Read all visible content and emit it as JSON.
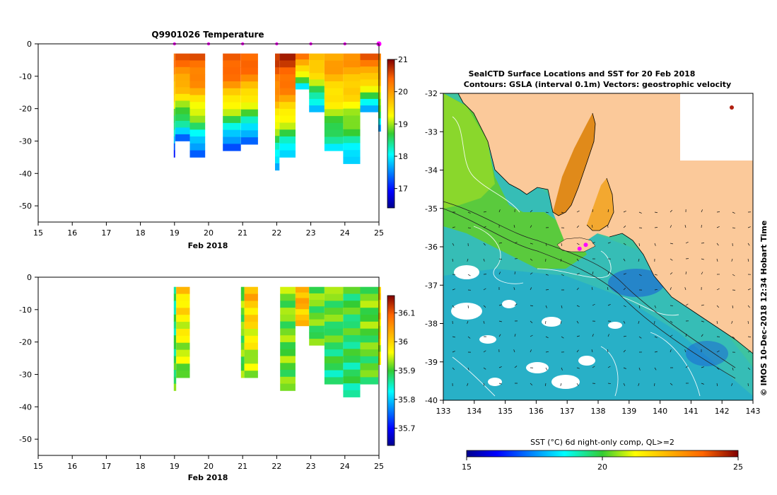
{
  "chart_data": [
    {
      "id": "temperature-section",
      "type": "heatmap",
      "title": "Q9901026  Temperature",
      "xlabel": "Feb 2018",
      "ylabel": "",
      "x_ticks": [
        "15",
        "16",
        "17",
        "18",
        "19",
        "20",
        "21",
        "22",
        "23",
        "24",
        "25"
      ],
      "y_ticks": [
        "0",
        "-10",
        "-20",
        "-30",
        "-40",
        "-50"
      ],
      "xlim": [
        15,
        25
      ],
      "ylim": [
        -55,
        0
      ],
      "colorbar": {
        "min": 16.4,
        "max": 21,
        "ticks": [
          "17",
          "18",
          "19",
          "20",
          "21"
        ]
      },
      "markers_x": [
        19,
        20,
        21,
        22,
        23,
        24,
        25
      ],
      "profiles": [
        {
          "x0": 18.98,
          "x1": 19.02,
          "depth": 35,
          "surface": 20.3,
          "bottom": 16.9
        },
        {
          "x0": 19.02,
          "x1": 19.45,
          "depth": 30,
          "surface": 20.4,
          "bottom": 17.3
        },
        {
          "x0": 19.45,
          "x1": 19.9,
          "depth": 35,
          "surface": 20.5,
          "bottom": 17.0
        },
        {
          "x0": 20.42,
          "x1": 20.95,
          "depth": 33,
          "surface": 20.6,
          "bottom": 16.9
        },
        {
          "x0": 20.95,
          "x1": 21.45,
          "depth": 31,
          "surface": 20.5,
          "bottom": 17.0
        },
        {
          "x0": 21.95,
          "x1": 22.08,
          "depth": 39,
          "surface": 20.6,
          "bottom": 17.4
        },
        {
          "x0": 22.08,
          "x1": 22.55,
          "depth": 35,
          "surface": 20.7,
          "bottom": 17.6
        },
        {
          "x0": 22.55,
          "x1": 22.95,
          "depth": 14,
          "surface": 20.3,
          "bottom": 17.6
        },
        {
          "x0": 22.95,
          "x1": 23.4,
          "depth": 21,
          "surface": 19.9,
          "bottom": 17.4
        },
        {
          "x0": 23.4,
          "x1": 23.95,
          "depth": 33,
          "surface": 20.0,
          "bottom": 17.9
        },
        {
          "x0": 23.95,
          "x1": 24.45,
          "depth": 37,
          "surface": 20.0,
          "bottom": 17.6
        },
        {
          "x0": 24.45,
          "x1": 24.98,
          "depth": 21,
          "surface": 20.4,
          "bottom": 17.5
        },
        {
          "x0": 24.98,
          "x1": 25.06,
          "depth": 27,
          "surface": 20.2,
          "bottom": 17.6
        }
      ]
    },
    {
      "id": "salinity-section",
      "type": "heatmap",
      "title": "",
      "xlabel": "Feb 2018",
      "ylabel": "",
      "x_ticks": [
        "15",
        "16",
        "17",
        "18",
        "19",
        "20",
        "21",
        "22",
        "23",
        "24",
        "25"
      ],
      "y_ticks": [
        "0",
        "-10",
        "-20",
        "-30",
        "-40",
        "-50"
      ],
      "xlim": [
        15,
        25
      ],
      "ylim": [
        -55,
        0
      ],
      "colorbar": {
        "min": 35.64,
        "max": 36.16,
        "ticks": [
          "35.7",
          "35.8",
          "35.9",
          "36",
          "36.1"
        ]
      },
      "profiles": [
        {
          "x0": 18.98,
          "x1": 19.05,
          "depth": 35,
          "surface": 35.86,
          "bottom": 35.9
        },
        {
          "x0": 19.05,
          "x1": 19.45,
          "depth": 31,
          "surface": 36.0,
          "bottom": 35.92
        },
        {
          "x0": 20.95,
          "x1": 21.05,
          "depth": 31,
          "surface": 35.92,
          "bottom": 35.91
        },
        {
          "x0": 21.05,
          "x1": 21.45,
          "depth": 31,
          "surface": 36.03,
          "bottom": 35.92
        },
        {
          "x0": 22.1,
          "x1": 22.55,
          "depth": 35,
          "surface": 35.92,
          "bottom": 35.91
        },
        {
          "x0": 22.55,
          "x1": 22.95,
          "depth": 15,
          "surface": 36.04,
          "bottom": 36.0
        },
        {
          "x0": 22.95,
          "x1": 23.4,
          "depth": 21,
          "surface": 35.92,
          "bottom": 35.9
        },
        {
          "x0": 23.4,
          "x1": 23.95,
          "depth": 33,
          "surface": 35.92,
          "bottom": 35.87
        },
        {
          "x0": 23.95,
          "x1": 24.45,
          "depth": 37,
          "surface": 35.9,
          "bottom": 35.87
        },
        {
          "x0": 24.45,
          "x1": 24.98,
          "depth": 33,
          "surface": 35.92,
          "bottom": 35.9
        },
        {
          "x0": 24.98,
          "x1": 25.06,
          "depth": 27,
          "surface": 36.0,
          "bottom": 35.95
        }
      ]
    },
    {
      "id": "sst-map",
      "type": "heatmap",
      "title": "SealCTD Surface Locations and SST for 20 Feb 2018",
      "subtitle": "Contours: GSLA (interval 0.1m) Vectors: geostrophic velocity",
      "xlabel": "",
      "ylabel": "",
      "x_ticks": [
        "133",
        "134",
        "135",
        "136",
        "137",
        "138",
        "139",
        "140",
        "141",
        "142",
        "143"
      ],
      "y_ticks": [
        "-32",
        "-33",
        "-34",
        "-35",
        "-36",
        "-37",
        "-38",
        "-39",
        "-40"
      ],
      "xlim": [
        133,
        143
      ],
      "ylim": [
        -40,
        -32
      ],
      "colorbar": {
        "label": "SST (°C) 6d night-only comp, QL>=2",
        "min": 15,
        "max": 25,
        "ticks": [
          "15",
          "20",
          "25"
        ]
      },
      "side_label": "© IMOS 10-Dec-2018 12:34 Hobart Time",
      "seal_positions": [
        [
          137.4,
          -36.05
        ],
        [
          137.6,
          -35.95
        ]
      ]
    }
  ]
}
